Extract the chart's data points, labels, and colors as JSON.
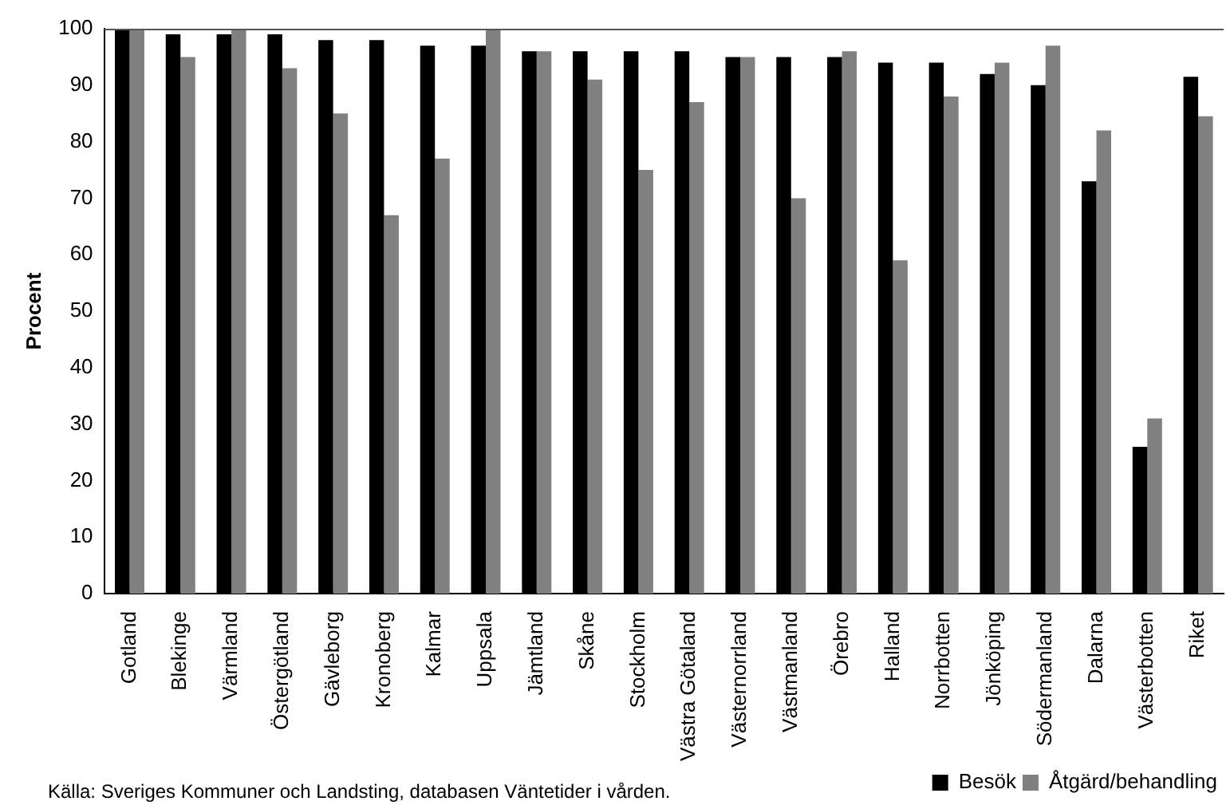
{
  "chart_data": {
    "type": "bar",
    "ylabel": "Procent",
    "categories": [
      "Gotland",
      "Blekinge",
      "Värmland",
      "Östergötland",
      "Gävleborg",
      "Kronoberg",
      "Kalmar",
      "Uppsala",
      "Jämtland",
      "Skåne",
      "Stockholm",
      "Västra Götaland",
      "Västernorrland",
      "Västmanland",
      "Örebro",
      "Halland",
      "Norrbotten",
      "Jönköping",
      "Södermanland",
      "Dalarna",
      "Västerbotten",
      "Riket"
    ],
    "series": [
      {
        "name": "Besök",
        "color": "#000000",
        "values": [
          100,
          99,
          99,
          99,
          98,
          98,
          97,
          97,
          96,
          96,
          96,
          96,
          95,
          95,
          95,
          94,
          94,
          92,
          90,
          73,
          26,
          91.5
        ]
      },
      {
        "name": "Åtgärd/behandling",
        "color": "#808080",
        "values": [
          100,
          95,
          100,
          93,
          85,
          67,
          77,
          100,
          96,
          91,
          75,
          87,
          95,
          70,
          96,
          59,
          88,
          94,
          97,
          82,
          31,
          84.5
        ]
      }
    ],
    "ylim": [
      0,
      100
    ],
    "yticks": [
      0,
      10,
      20,
      30,
      40,
      50,
      60,
      70,
      80,
      90,
      100
    ],
    "grid": false,
    "legend": "bottom right",
    "annotations": [
      "Källa: Sveriges Kommuner och Landsting, databasen Väntetider i vården."
    ]
  }
}
